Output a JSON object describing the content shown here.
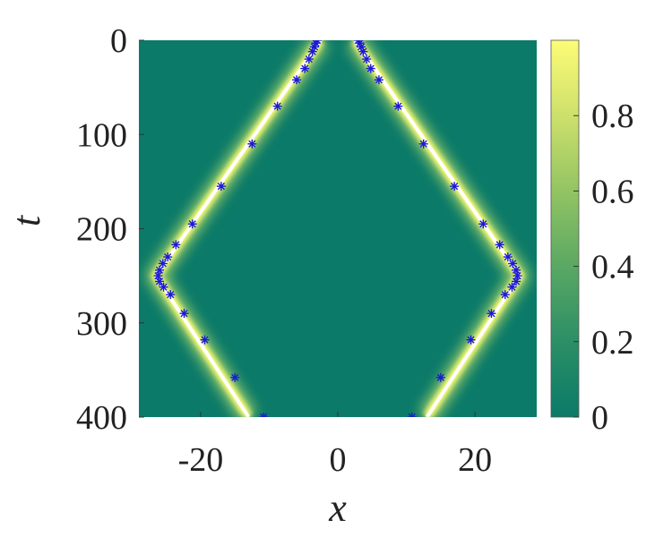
{
  "chart_data": {
    "type": "heatmap",
    "title": "",
    "xlabel": "x",
    "ylabel": "t",
    "xlim": [
      -29,
      29
    ],
    "ylim": [
      0,
      400
    ],
    "y_direction": "reversed",
    "x_ticks": [
      -20,
      0,
      20
    ],
    "x_tick_labels": [
      "-20",
      "0",
      "20"
    ],
    "y_ticks": [
      0,
      100,
      200,
      300,
      400
    ],
    "y_tick_labels": [
      "0",
      "100",
      "200",
      "300",
      "400"
    ],
    "colorbar": {
      "range": [
        0,
        1
      ],
      "ticks": [
        0,
        0.2,
        0.4,
        0.6,
        0.8
      ],
      "tick_labels": [
        "0",
        "0.2",
        "0.4",
        "0.6",
        "0.8"
      ]
    },
    "grid": false,
    "field_description_ridges": [
      {
        "name": "left",
        "points": [
          [
            -2.5,
            0
          ],
          [
            -26.5,
            250
          ],
          [
            -13,
            400
          ]
        ]
      },
      {
        "name": "right",
        "points": [
          [
            2.5,
            0
          ],
          [
            26.5,
            250
          ],
          [
            13,
            400
          ]
        ]
      }
    ],
    "series": [
      {
        "marker": "asterisk",
        "points": [
          [
            -3.0,
            0
          ],
          [
            -3.2,
            3
          ],
          [
            -3.4,
            7
          ],
          [
            -3.7,
            12
          ],
          [
            -4.2,
            20
          ],
          [
            -4.8,
            30
          ],
          [
            -6.0,
            42
          ],
          [
            -8.8,
            70
          ],
          [
            -12.5,
            110
          ],
          [
            -17.0,
            155
          ],
          [
            -21.2,
            195
          ],
          [
            -23.6,
            217
          ],
          [
            -24.8,
            230
          ],
          [
            -25.5,
            237
          ],
          [
            -26.0,
            244
          ],
          [
            -26.2,
            250
          ],
          [
            -26.0,
            256
          ],
          [
            -25.4,
            262
          ],
          [
            -24.4,
            270
          ],
          [
            -22.4,
            290
          ],
          [
            -19.4,
            318
          ],
          [
            -15.0,
            358
          ],
          [
            -10.8,
            400
          ],
          [
            3.0,
            0
          ],
          [
            3.2,
            3
          ],
          [
            3.4,
            7
          ],
          [
            3.7,
            12
          ],
          [
            4.2,
            20
          ],
          [
            4.8,
            30
          ],
          [
            6.0,
            42
          ],
          [
            8.8,
            70
          ],
          [
            12.5,
            110
          ],
          [
            17.0,
            155
          ],
          [
            21.2,
            195
          ],
          [
            23.6,
            217
          ],
          [
            24.8,
            230
          ],
          [
            25.5,
            237
          ],
          [
            26.0,
            244
          ],
          [
            26.2,
            250
          ],
          [
            26.0,
            256
          ],
          [
            25.4,
            262
          ],
          [
            24.4,
            270
          ],
          [
            22.4,
            290
          ],
          [
            19.4,
            318
          ],
          [
            15.0,
            358
          ],
          [
            10.8,
            400
          ]
        ]
      }
    ],
    "colors": {
      "low": "#0b7a68",
      "high": "#fdfc76",
      "ridge": "#ffffff",
      "marker": "#1a1ad6"
    }
  }
}
